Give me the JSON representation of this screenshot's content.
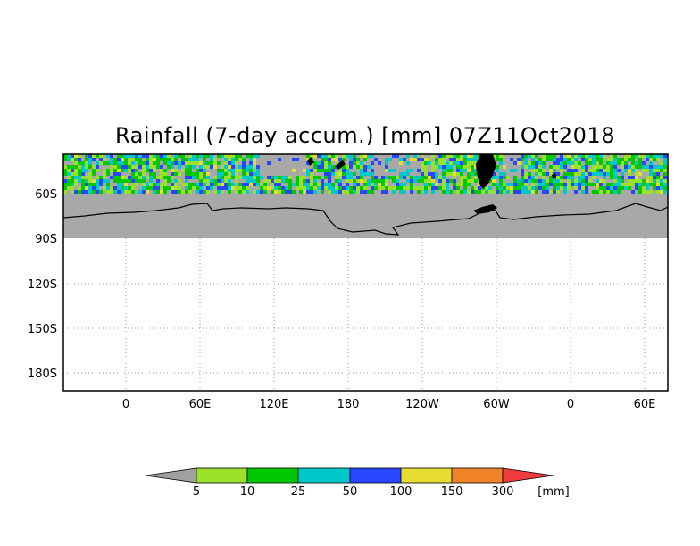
{
  "map": {
    "title": "Rainfall (7-day accum.) [mm] 07Z11Oct2018",
    "lat_labels": [
      "60S",
      "90S",
      "120S",
      "150S",
      "180S"
    ],
    "lon_labels": [
      "0",
      "60E",
      "120E",
      "180",
      "120W",
      "60W",
      "0",
      "60E"
    ],
    "masked_color": "#a8a8a8"
  },
  "colorbar": {
    "thresholds": [
      "5",
      "10",
      "25",
      "50",
      "100",
      "150",
      "300"
    ],
    "unit": "[mm]",
    "colors": [
      "#a0a0a0",
      "#9be12c",
      "#00c800",
      "#00c8c8",
      "#2846ff",
      "#e6dc32",
      "#f08228",
      "#f03c3c"
    ]
  }
}
